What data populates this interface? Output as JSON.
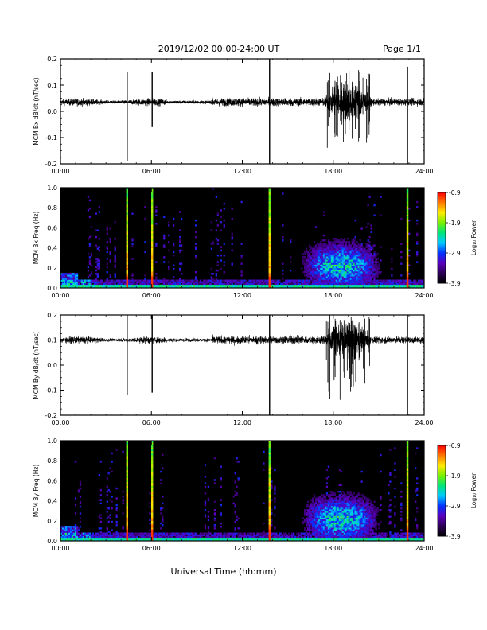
{
  "header": {
    "title": "2019/12/02  00:00-24:00 UT",
    "page": "Page 1/1"
  },
  "footer": {
    "xlabel": "Universal Time (hh:mm)"
  },
  "colorbar": {
    "label": "Log₁₀ Power",
    "ticks": [
      "-0.9",
      "-1.9",
      "-2.9",
      "-3.9"
    ]
  },
  "chart_data": [
    {
      "type": "line",
      "ylabel": "MCM Bx dB/dt (nT/sec)",
      "ylim": [
        -0.2,
        0.2
      ],
      "yticks": [
        "0.2",
        "0.1",
        "0.0",
        "-0.1",
        "-0.2"
      ],
      "xlim": [
        0,
        24
      ],
      "xticks": [
        "00:00",
        "06:00",
        "12:00",
        "18:00",
        "24:00"
      ],
      "baseline": 0.035,
      "spikes": [
        {
          "t": 4.4,
          "high": 0.15,
          "low": -0.19
        },
        {
          "t": 6.05,
          "high": 0.15,
          "low": -0.06
        },
        {
          "t": 13.8,
          "high": 0.2,
          "low": -0.2
        },
        {
          "t": 22.9,
          "high": 0.17,
          "low": -0.2
        }
      ],
      "active_interval": {
        "start": 17.4,
        "end": 20.5,
        "high": 0.16,
        "low": -0.16
      }
    },
    {
      "type": "heatmap",
      "ylabel": "MCM Bx Freq (Hz)",
      "ylim": [
        0.0,
        1.0
      ],
      "yticks": [
        "1.0",
        "0.8",
        "0.6",
        "0.4",
        "0.2",
        "0.0"
      ],
      "xlim": [
        0,
        24
      ],
      "xticks": [
        "00:00",
        "06:00",
        "12:00",
        "18:00",
        "24:00"
      ],
      "zlim": [
        -3.9,
        -0.9
      ],
      "broadband_lines": [
        4.4,
        6.05,
        13.8,
        22.9
      ],
      "active_interval": [
        15.5,
        21.5
      ]
    },
    {
      "type": "line",
      "ylabel": "MCM By dB/dt (nT/sec)",
      "ylim": [
        -0.2,
        0.2
      ],
      "yticks": [
        "0.2",
        "0.1",
        "0.0",
        "-0.1",
        "-0.2"
      ],
      "xlim": [
        0,
        24
      ],
      "xticks": [
        "00:00",
        "06:00",
        "12:00",
        "18:00",
        "24:00"
      ],
      "baseline": 0.1,
      "spikes": [
        {
          "t": 4.4,
          "high": 0.2,
          "low": -0.12
        },
        {
          "t": 6.05,
          "high": 0.2,
          "low": -0.11
        },
        {
          "t": 13.8,
          "high": 0.2,
          "low": -0.2
        },
        {
          "t": 22.9,
          "high": 0.2,
          "low": -0.2
        }
      ],
      "active_interval": {
        "start": 17.4,
        "end": 20.5,
        "high": 0.2,
        "low": -0.14
      }
    },
    {
      "type": "heatmap",
      "ylabel": "MCM By Freq (Hz)",
      "ylim": [
        0.0,
        1.0
      ],
      "yticks": [
        "1.0",
        "0.8",
        "0.6",
        "0.4",
        "0.2",
        "0.0"
      ],
      "xlim": [
        0,
        24
      ],
      "xticks": [
        "00:00",
        "06:00",
        "12:00",
        "18:00",
        "24:00"
      ],
      "zlim": [
        -3.9,
        -0.9
      ],
      "broadband_lines": [
        4.4,
        6.05,
        13.8,
        22.9
      ],
      "active_interval": [
        15.5,
        21.5
      ]
    }
  ]
}
